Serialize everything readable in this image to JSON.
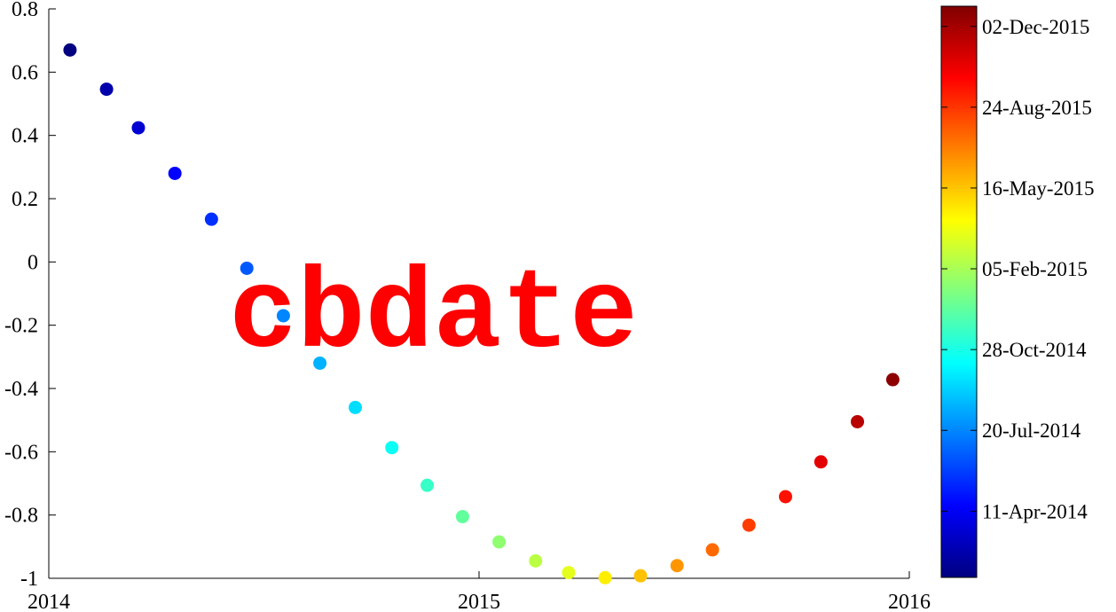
{
  "chart_data": {
    "type": "scatter",
    "title": "",
    "xlabel": "",
    "ylabel": "",
    "watermark": "cbdate",
    "xlim": [
      2014,
      2016
    ],
    "ylim": [
      -1,
      0.8
    ],
    "x_ticks": [
      "2014",
      "2015",
      "2016"
    ],
    "y_ticks": [
      "0.8",
      "0.6",
      "0.4",
      "0.2",
      "0",
      "-0.2",
      "-0.4",
      "-0.6",
      "-0.8",
      "-1"
    ],
    "grid": false,
    "colormap": "jet",
    "colorbar": {
      "position": "right",
      "range": [
        "2014-01-19",
        "2015-12-27"
      ],
      "tick_labels": [
        "11-Apr-2014",
        "20-Jul-2014",
        "28-Oct-2014",
        "05-Feb-2015",
        "16-May-2015",
        "24-Aug-2015",
        "02-Dec-2015"
      ],
      "tick_dates": [
        "2014-04-11",
        "2014-07-20",
        "2014-10-28",
        "2015-02-05",
        "2015-05-16",
        "2015-08-24",
        "2015-12-02"
      ]
    },
    "series": [
      {
        "points": [
          {
            "x": "2014-01-19",
            "y": 0.67
          },
          {
            "x": "2014-02-19",
            "y": 0.546
          },
          {
            "x": "2014-03-18",
            "y": 0.424
          },
          {
            "x": "2014-04-18",
            "y": 0.28
          },
          {
            "x": "2014-05-19",
            "y": 0.135
          },
          {
            "x": "2014-06-18",
            "y": -0.02
          },
          {
            "x": "2014-07-19",
            "y": -0.17
          },
          {
            "x": "2014-08-19",
            "y": -0.32
          },
          {
            "x": "2014-09-18",
            "y": -0.46
          },
          {
            "x": "2014-10-19",
            "y": -0.587
          },
          {
            "x": "2014-11-18",
            "y": -0.706
          },
          {
            "x": "2014-12-18",
            "y": -0.805
          },
          {
            "x": "2015-01-18",
            "y": -0.885
          },
          {
            "x": "2015-02-18",
            "y": -0.945
          },
          {
            "x": "2015-03-18",
            "y": -0.982
          },
          {
            "x": "2015-04-18",
            "y": -0.998
          },
          {
            "x": "2015-05-18",
            "y": -0.992
          },
          {
            "x": "2015-06-18",
            "y": -0.96
          },
          {
            "x": "2015-07-18",
            "y": -0.91
          },
          {
            "x": "2015-08-18",
            "y": -0.832
          },
          {
            "x": "2015-09-18",
            "y": -0.742
          },
          {
            "x": "2015-10-18",
            "y": -0.632
          },
          {
            "x": "2015-11-18",
            "y": -0.505
          },
          {
            "x": "2015-12-18",
            "y": -0.372
          }
        ]
      }
    ]
  }
}
